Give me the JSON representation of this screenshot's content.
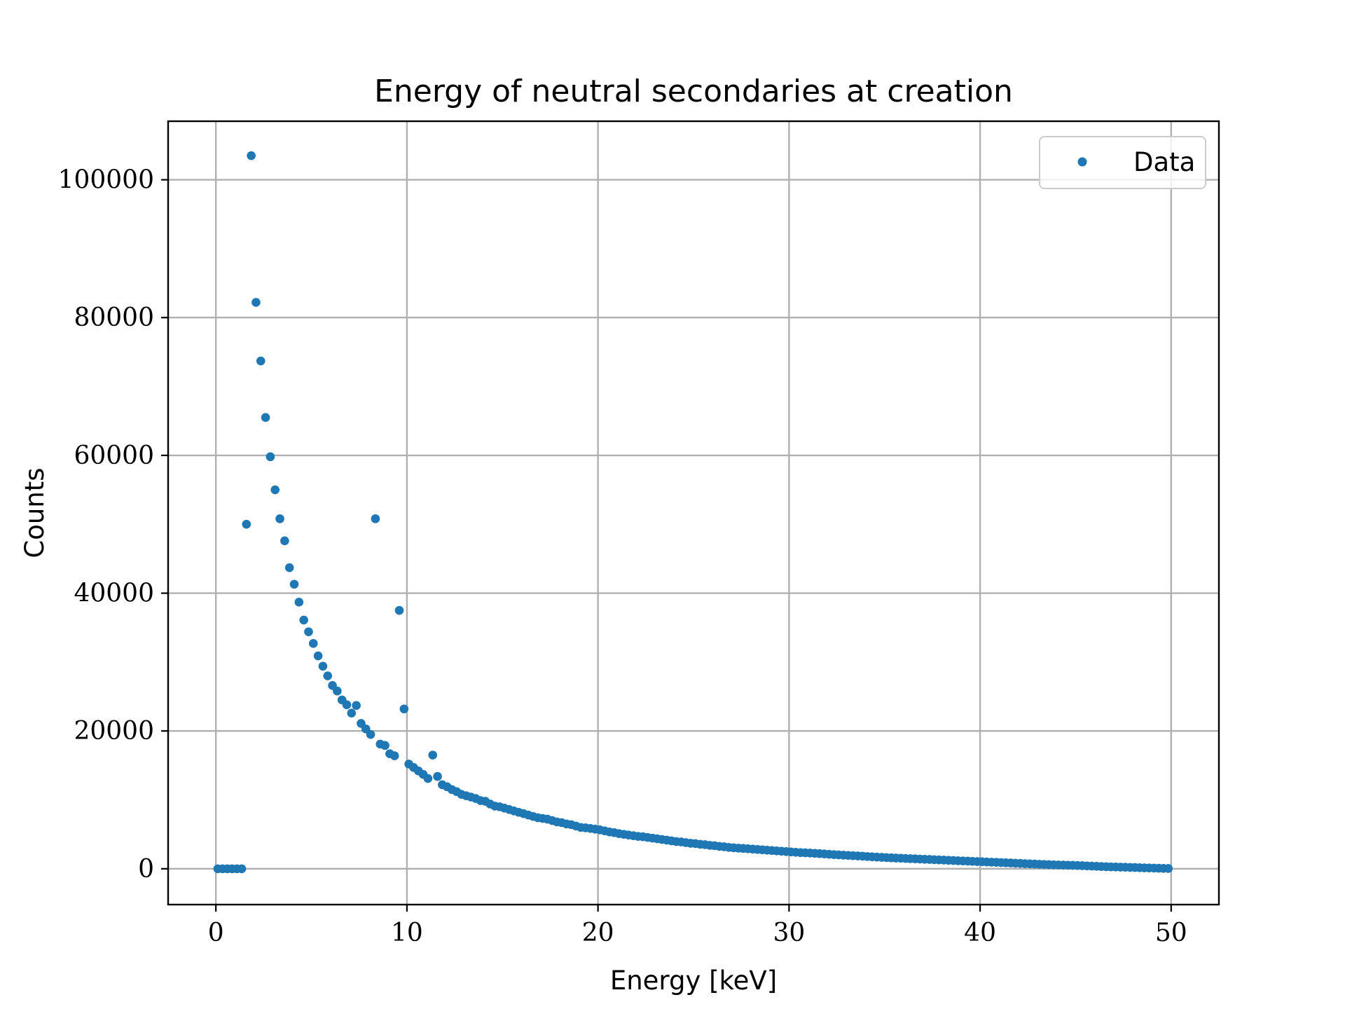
{
  "chart_data": {
    "type": "scatter",
    "title": "Energy of neutral secondaries at creation",
    "xlabel": "Energy [keV]",
    "ylabel": "Counts",
    "xlim": [
      -2.5,
      52.5
    ],
    "ylim": [
      -5200,
      108500
    ],
    "xticks": [
      0,
      10,
      20,
      30,
      40,
      50
    ],
    "yticks": [
      0,
      20000,
      40000,
      60000,
      80000,
      100000
    ],
    "grid": true,
    "legend": {
      "placement": "top-right",
      "entries": [
        "Data"
      ]
    },
    "series": [
      {
        "name": "Data",
        "color": "#1f77b4",
        "points": [
          [
            0.1,
            0
          ],
          [
            0.35,
            0
          ],
          [
            0.6,
            0
          ],
          [
            0.85,
            0
          ],
          [
            1.1,
            0
          ],
          [
            1.35,
            0
          ],
          [
            1.6,
            50000
          ],
          [
            1.85,
            103500
          ],
          [
            2.1,
            82200
          ],
          [
            2.35,
            73700
          ],
          [
            2.6,
            65500
          ],
          [
            2.85,
            59800
          ],
          [
            3.1,
            55000
          ],
          [
            3.35,
            50800
          ],
          [
            3.6,
            47600
          ],
          [
            3.85,
            43700
          ],
          [
            4.1,
            41300
          ],
          [
            4.35,
            38700
          ],
          [
            4.6,
            36100
          ],
          [
            4.85,
            34400
          ],
          [
            5.1,
            32700
          ],
          [
            5.35,
            30900
          ],
          [
            5.6,
            29400
          ],
          [
            5.85,
            28000
          ],
          [
            6.1,
            26600
          ],
          [
            6.35,
            25800
          ],
          [
            6.6,
            24500
          ],
          [
            6.85,
            23800
          ],
          [
            7.1,
            22600
          ],
          [
            7.35,
            23700
          ],
          [
            7.6,
            21100
          ],
          [
            7.85,
            20300
          ],
          [
            8.1,
            19500
          ],
          [
            8.35,
            50800
          ],
          [
            8.6,
            18100
          ],
          [
            8.85,
            17900
          ],
          [
            9.1,
            16700
          ],
          [
            9.35,
            16400
          ],
          [
            9.6,
            37500
          ],
          [
            9.85,
            23200
          ],
          [
            10.1,
            15200
          ],
          [
            10.35,
            14700
          ],
          [
            10.6,
            14200
          ],
          [
            10.85,
            13700
          ],
          [
            11.1,
            13100
          ],
          [
            11.35,
            16500
          ],
          [
            11.6,
            13400
          ],
          [
            11.85,
            12200
          ],
          [
            12.1,
            11900
          ],
          [
            12.35,
            11500
          ],
          [
            12.6,
            11200
          ],
          [
            12.85,
            10800
          ],
          [
            13.1,
            10600
          ],
          [
            13.35,
            10400
          ],
          [
            13.6,
            10200
          ],
          [
            13.85,
            9900
          ],
          [
            14.1,
            9800
          ],
          [
            14.35,
            9400
          ],
          [
            14.6,
            9100
          ],
          [
            14.85,
            9000
          ],
          [
            15.1,
            8800
          ],
          [
            15.35,
            8600
          ],
          [
            15.6,
            8400
          ],
          [
            15.85,
            8200
          ],
          [
            16.1,
            8000
          ],
          [
            16.35,
            7800
          ],
          [
            16.6,
            7600
          ],
          [
            16.85,
            7400
          ],
          [
            17.1,
            7300
          ],
          [
            17.35,
            7200
          ],
          [
            17.6,
            7000
          ],
          [
            17.85,
            6800
          ],
          [
            18.1,
            6700
          ],
          [
            18.35,
            6500
          ],
          [
            18.6,
            6400
          ],
          [
            18.85,
            6200
          ],
          [
            19.1,
            6000
          ],
          [
            19.35,
            5950
          ],
          [
            19.6,
            5850
          ],
          [
            19.85,
            5750
          ],
          [
            20.1,
            5650
          ],
          [
            20.35,
            5500
          ],
          [
            20.6,
            5350
          ],
          [
            20.85,
            5250
          ],
          [
            21.1,
            5100
          ],
          [
            21.35,
            5000
          ],
          [
            21.6,
            4900
          ],
          [
            21.85,
            4800
          ],
          [
            22.1,
            4700
          ],
          [
            22.35,
            4650
          ],
          [
            22.6,
            4550
          ],
          [
            22.85,
            4450
          ],
          [
            23.1,
            4350
          ],
          [
            23.35,
            4250
          ],
          [
            23.6,
            4150
          ],
          [
            23.85,
            4050
          ],
          [
            24.1,
            3950
          ],
          [
            24.35,
            3900
          ],
          [
            24.6,
            3800
          ],
          [
            24.85,
            3700
          ],
          [
            25.1,
            3650
          ],
          [
            25.35,
            3550
          ],
          [
            25.6,
            3500
          ],
          [
            25.85,
            3400
          ],
          [
            26.1,
            3350
          ],
          [
            26.35,
            3250
          ],
          [
            26.6,
            3200
          ],
          [
            26.85,
            3100
          ],
          [
            27.1,
            3050
          ],
          [
            27.35,
            3000
          ],
          [
            27.6,
            2950
          ],
          [
            27.85,
            2900
          ],
          [
            28.1,
            2850
          ],
          [
            28.35,
            2800
          ],
          [
            28.6,
            2750
          ],
          [
            28.85,
            2700
          ],
          [
            29.1,
            2650
          ],
          [
            29.35,
            2600
          ],
          [
            29.6,
            2550
          ],
          [
            29.85,
            2500
          ],
          [
            30.1,
            2450
          ],
          [
            30.35,
            2400
          ],
          [
            30.6,
            2350
          ],
          [
            30.85,
            2320
          ],
          [
            31.1,
            2280
          ],
          [
            31.35,
            2240
          ],
          [
            31.6,
            2200
          ],
          [
            31.85,
            2150
          ],
          [
            32.1,
            2100
          ],
          [
            32.35,
            2060
          ],
          [
            32.6,
            2020
          ],
          [
            32.85,
            1980
          ],
          [
            33.1,
            1940
          ],
          [
            33.35,
            1900
          ],
          [
            33.6,
            1860
          ],
          [
            33.85,
            1820
          ],
          [
            34.1,
            1780
          ],
          [
            34.35,
            1740
          ],
          [
            34.6,
            1700
          ],
          [
            34.85,
            1660
          ],
          [
            35.1,
            1620
          ],
          [
            35.35,
            1590
          ],
          [
            35.6,
            1560
          ],
          [
            35.85,
            1530
          ],
          [
            36.1,
            1500
          ],
          [
            36.35,
            1470
          ],
          [
            36.6,
            1440
          ],
          [
            36.85,
            1410
          ],
          [
            37.1,
            1380
          ],
          [
            37.35,
            1350
          ],
          [
            37.6,
            1320
          ],
          [
            37.85,
            1290
          ],
          [
            38.1,
            1260
          ],
          [
            38.35,
            1230
          ],
          [
            38.6,
            1200
          ],
          [
            38.85,
            1170
          ],
          [
            39.1,
            1140
          ],
          [
            39.35,
            1110
          ],
          [
            39.6,
            1080
          ],
          [
            39.85,
            1050
          ],
          [
            40.1,
            1020
          ],
          [
            40.35,
            990
          ],
          [
            40.6,
            960
          ],
          [
            40.85,
            930
          ],
          [
            41.1,
            900
          ],
          [
            41.35,
            870
          ],
          [
            41.6,
            840
          ],
          [
            41.85,
            810
          ],
          [
            42.1,
            780
          ],
          [
            42.35,
            750
          ],
          [
            42.6,
            720
          ],
          [
            42.85,
            690
          ],
          [
            43.1,
            660
          ],
          [
            43.35,
            630
          ],
          [
            43.6,
            600
          ],
          [
            43.85,
            580
          ],
          [
            44.1,
            560
          ],
          [
            44.35,
            540
          ],
          [
            44.6,
            520
          ],
          [
            44.85,
            500
          ],
          [
            45.1,
            480
          ],
          [
            45.35,
            450
          ],
          [
            45.6,
            420
          ],
          [
            45.85,
            390
          ],
          [
            46.1,
            360
          ],
          [
            46.35,
            330
          ],
          [
            46.6,
            300
          ],
          [
            46.85,
            280
          ],
          [
            47.1,
            260
          ],
          [
            47.35,
            240
          ],
          [
            47.6,
            220
          ],
          [
            47.85,
            200
          ],
          [
            48.1,
            180
          ],
          [
            48.35,
            160
          ],
          [
            48.6,
            140
          ],
          [
            48.85,
            120
          ],
          [
            49.1,
            100
          ],
          [
            49.35,
            80
          ],
          [
            49.6,
            60
          ],
          [
            49.85,
            40
          ]
        ]
      }
    ]
  }
}
